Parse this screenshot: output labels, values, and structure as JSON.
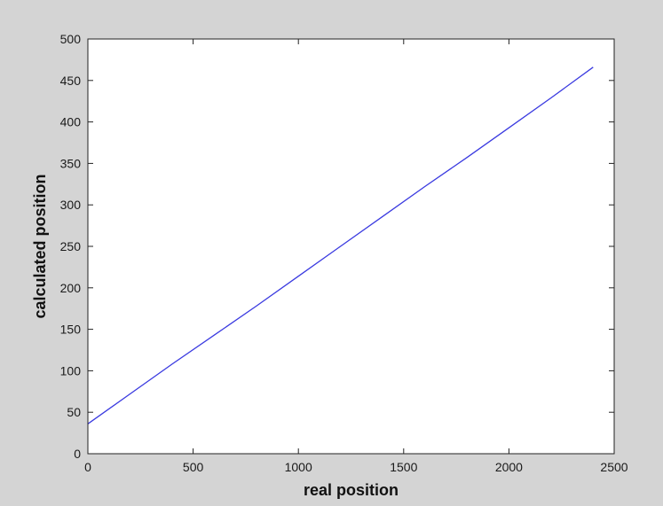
{
  "figure": {
    "background_color": "#d4d4d4",
    "plot_background_color": "#ffffff",
    "axis_color": "#222222"
  },
  "chart_data": {
    "type": "line",
    "title": "",
    "xlabel": "real position",
    "ylabel": "calculated position",
    "xlim": [
      0,
      2500
    ],
    "ylim": [
      0,
      500
    ],
    "xticks": [
      0,
      500,
      1000,
      1500,
      2000,
      2500
    ],
    "yticks": [
      0,
      50,
      100,
      150,
      200,
      250,
      300,
      350,
      400,
      450,
      500
    ],
    "grid": false,
    "legend": "none",
    "series": [
      {
        "color": "#3a3ae0",
        "x": [
          0,
          200,
          400,
          600,
          800,
          1000,
          1200,
          1400,
          1600,
          1800,
          2000,
          2200,
          2400
        ],
        "y": [
          36,
          72,
          108,
          143,
          178,
          214,
          250,
          286,
          322,
          357,
          393,
          429,
          466
        ]
      }
    ]
  }
}
